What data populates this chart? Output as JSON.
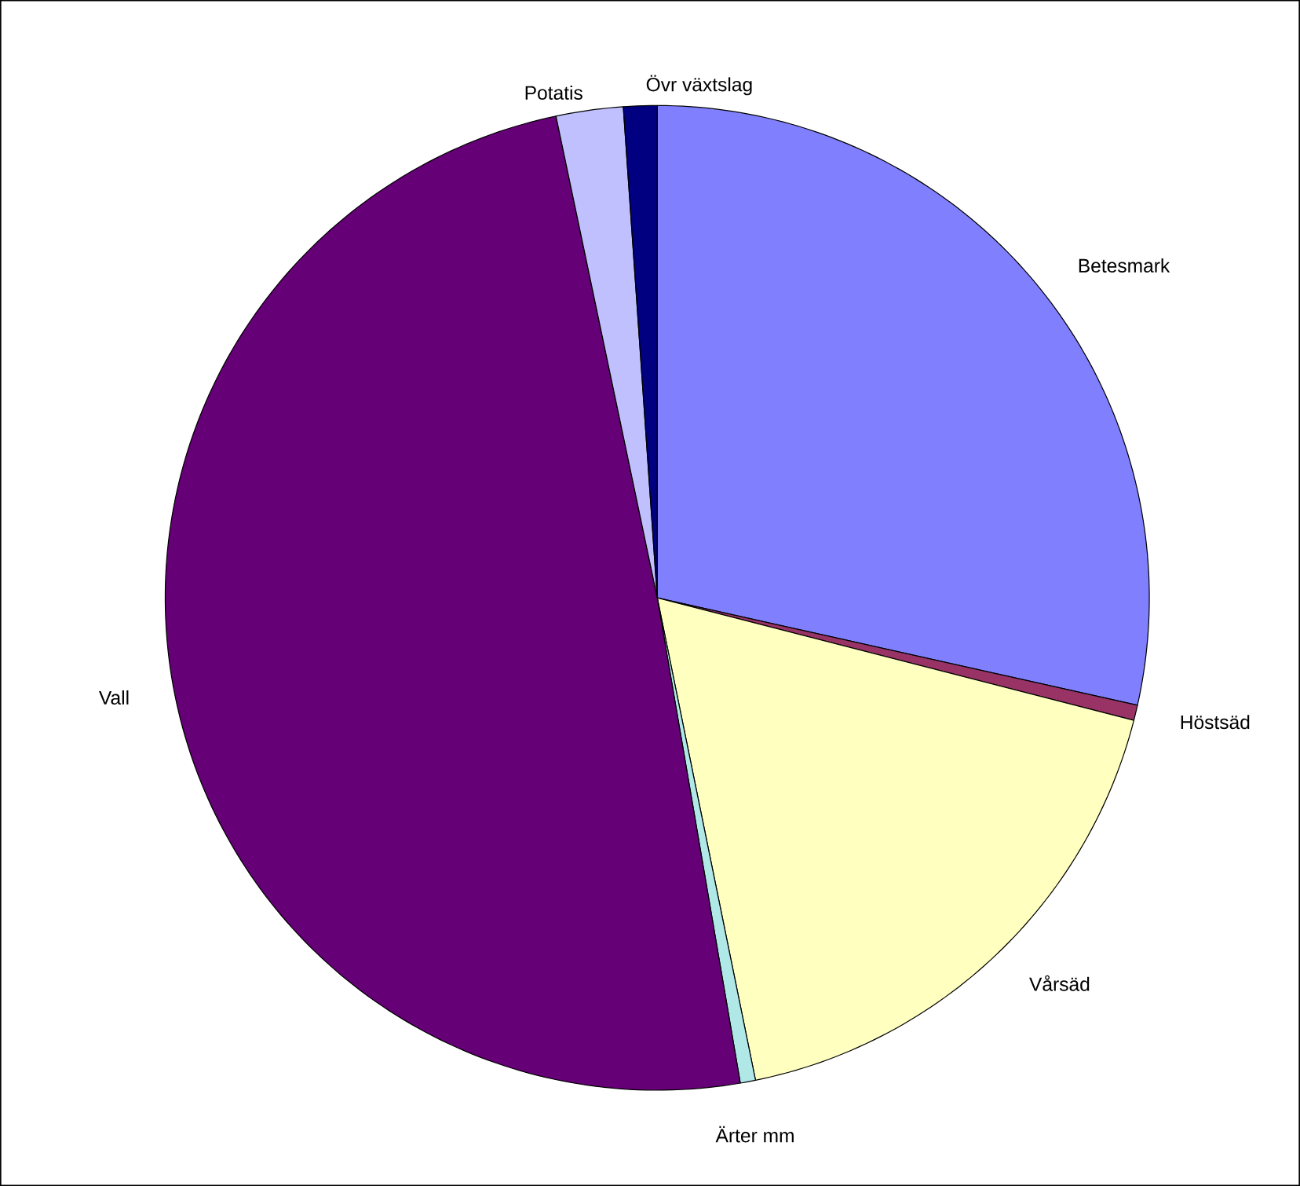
{
  "chart_data": {
    "type": "pie",
    "categories": [
      "Betesmark",
      "Höstsäd",
      "Vårsäd",
      "Ärter mm",
      "Vall",
      "Potatis",
      "Övr växtslag"
    ],
    "values": [
      28.5,
      0.5,
      17.8,
      0.5,
      49.4,
      2.2,
      1.1
    ],
    "colors": [
      "#8080ff",
      "#993366",
      "#ffffc0",
      "#b0e8e8",
      "#660077",
      "#c0c0ff",
      "#000080"
    ]
  }
}
